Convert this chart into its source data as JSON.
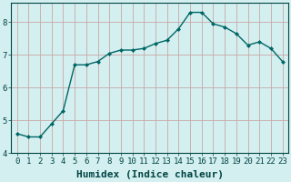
{
  "x": [
    0,
    1,
    2,
    3,
    4,
    5,
    6,
    7,
    8,
    9,
    10,
    11,
    12,
    13,
    14,
    15,
    16,
    17,
    18,
    19,
    20,
    21,
    22,
    23
  ],
  "y": [
    4.6,
    4.5,
    4.5,
    4.9,
    5.3,
    6.7,
    6.7,
    6.8,
    7.05,
    7.15,
    7.15,
    7.2,
    7.35,
    7.45,
    7.8,
    8.3,
    8.3,
    7.95,
    7.85,
    7.65,
    7.3,
    7.4,
    7.2,
    6.8
  ],
  "line_color": "#006666",
  "marker": "D",
  "marker_size": 2.0,
  "bg_color": "#d4efef",
  "grid_color_horiz": "#c8a8a8",
  "grid_color_vert": "#c8a8a8",
  "xlabel": "Humidex (Indice chaleur)",
  "xlabel_fontsize": 8,
  "ylim": [
    4.0,
    8.6
  ],
  "xlim": [
    -0.5,
    23.5
  ],
  "yticks": [
    4,
    5,
    6,
    7,
    8
  ],
  "xticks": [
    0,
    1,
    2,
    3,
    4,
    5,
    6,
    7,
    8,
    9,
    10,
    11,
    12,
    13,
    14,
    15,
    16,
    17,
    18,
    19,
    20,
    21,
    22,
    23
  ],
  "tick_fontsize": 6.5,
  "line_width": 1.0
}
